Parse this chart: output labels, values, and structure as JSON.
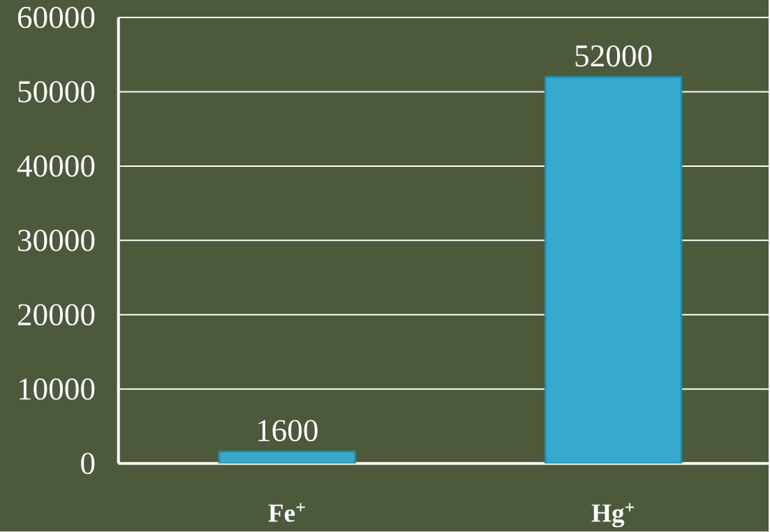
{
  "chart_data": {
    "type": "bar",
    "categories": [
      "Fe$^{+}$",
      "Hg$^{+}$"
    ],
    "values": [
      1600,
      52000
    ],
    "color": "#36a9cc",
    "ylim": [
      0,
      60000
    ],
    "yticks": [
      0,
      10000,
      20000,
      30000,
      40000,
      50000,
      60000
    ],
    "grid": "y",
    "data_labels": true
  }
}
